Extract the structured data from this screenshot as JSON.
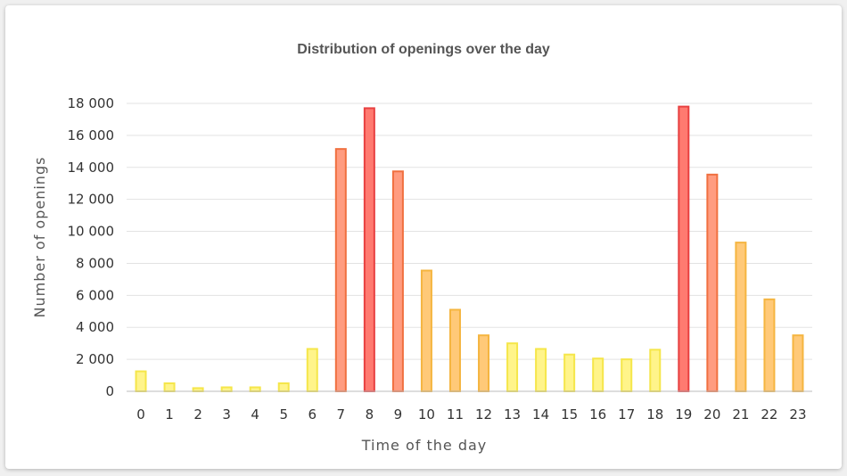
{
  "chart_data": {
    "type": "bar",
    "title": "Distribution of openings over the day",
    "xlabel": "Time of the day",
    "ylabel": "Number of openings",
    "ylim": [
      0,
      18000
    ],
    "yticks": [
      0,
      2000,
      4000,
      6000,
      8000,
      10000,
      12000,
      14000,
      16000,
      18000
    ],
    "ytick_labels": [
      "0",
      "2 000",
      "4 000",
      "6 000",
      "8 000",
      "10 000",
      "12 000",
      "14 000",
      "16 000",
      "18 000"
    ],
    "categories": [
      "0",
      "1",
      "2",
      "3",
      "4",
      "5",
      "6",
      "7",
      "8",
      "9",
      "10",
      "11",
      "12",
      "13",
      "14",
      "15",
      "16",
      "17",
      "18",
      "19",
      "20",
      "21",
      "22",
      "23"
    ],
    "values": [
      1250,
      500,
      200,
      250,
      250,
      500,
      2650,
      15150,
      17700,
      13750,
      7550,
      5100,
      3500,
      3000,
      2650,
      2300,
      2050,
      2000,
      2600,
      17800,
      13550,
      9300,
      5750,
      3500
    ],
    "grid": true,
    "legend": "none",
    "color_scale": {
      "low_fill": "#fff48a",
      "low_stroke": "#f5e64a",
      "mid_fill": "#ffc978",
      "mid_stroke": "#f5b540",
      "high_fill": "#ff9c80",
      "high_stroke": "#f07040",
      "peak_fill": "#ff7a70",
      "peak_stroke": "#e84040"
    }
  }
}
